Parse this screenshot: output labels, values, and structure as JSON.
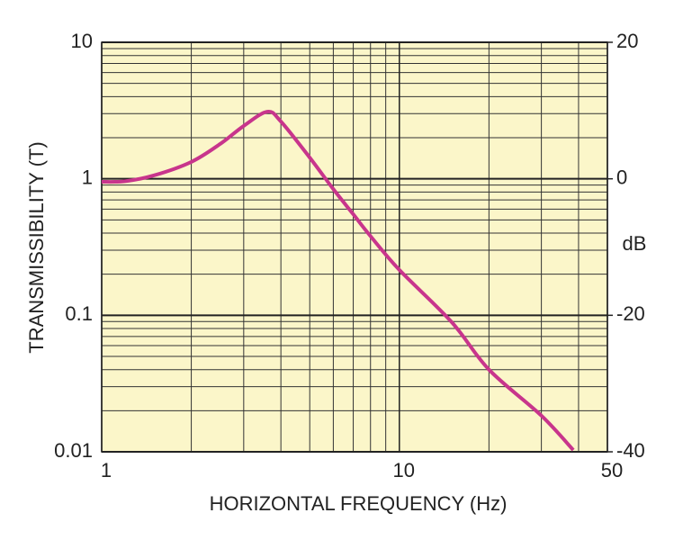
{
  "chart_data": {
    "type": "line",
    "xlabel": "HORIZONTAL FREQUENCY (Hz)",
    "ylabel": "TRANSMISSIBILITY (T)",
    "y2label": "dB",
    "x": [
      1,
      1.2,
      1.5,
      2,
      2.5,
      3,
      3.6,
      4,
      5,
      6,
      7,
      8,
      10,
      15,
      20,
      30,
      38.4
    ],
    "series": [
      {
        "color": "#c8358c",
        "values": [
          0.95,
          0.96,
          1.06,
          1.33,
          1.8,
          2.44,
          3.1,
          2.63,
          1.43,
          0.84,
          0.55,
          0.38,
          0.215,
          0.089,
          0.04,
          0.0184,
          0.0103
        ]
      }
    ],
    "xscale": "log",
    "yscale": "log",
    "xlim": [
      1,
      50
    ],
    "xticks": [
      1,
      10,
      50
    ],
    "xminor": [
      2,
      3,
      4,
      5,
      6,
      7,
      8,
      9,
      20,
      30,
      40
    ],
    "ylim": [
      0.01,
      10
    ],
    "yticks": [
      0.01,
      0.1,
      1,
      10
    ],
    "yminor": [
      0.02,
      0.03,
      0.04,
      0.05,
      0.06,
      0.07,
      0.08,
      0.09,
      0.2,
      0.3,
      0.4,
      0.5,
      0.6,
      0.7,
      0.8,
      0.9,
      2,
      3,
      4,
      5,
      6,
      7,
      8,
      9
    ],
    "y2lim": [
      -40,
      20
    ],
    "y2ticks": [
      -40,
      -20,
      0,
      20
    ],
    "grid": true,
    "background": "#fbf6c9"
  }
}
